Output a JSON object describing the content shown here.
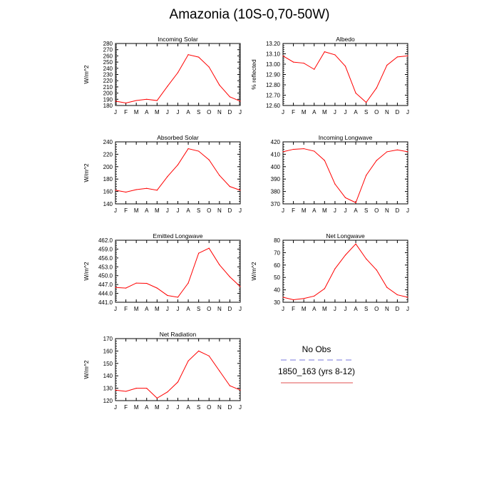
{
  "figure": {
    "title": "Amazonia (10S-0,70-50W)",
    "legend": {
      "entries": [
        {
          "label": "No Obs",
          "style": "dashed",
          "color": "#7777dd"
        },
        {
          "label": "1850_163 (yrs 8-12)",
          "style": "solid",
          "color": "#e05050"
        }
      ]
    },
    "line_color": "#ff0000"
  },
  "chart_data": [
    {
      "type": "line",
      "title": "Incoming Solar",
      "ylabel": "W/m^2",
      "categories": [
        "J",
        "F",
        "M",
        "A",
        "M",
        "J",
        "J",
        "A",
        "S",
        "O",
        "N",
        "D",
        "J"
      ],
      "ylim": [
        180,
        280
      ],
      "yticks": [
        "180",
        "190",
        "200",
        "210",
        "220",
        "230",
        "240",
        "250",
        "260",
        "270",
        "280"
      ],
      "values": [
        187,
        184,
        188,
        190,
        188,
        211,
        233,
        262,
        258,
        242,
        213,
        194,
        187
      ]
    },
    {
      "type": "line",
      "title": "Albedo",
      "ylabel": "% reflected",
      "categories": [
        "J",
        "F",
        "M",
        "A",
        "M",
        "J",
        "J",
        "A",
        "S",
        "O",
        "N",
        "D",
        "J"
      ],
      "ylim": [
        12.6,
        13.2
      ],
      "yticks": [
        "12.60",
        "12.70",
        "12.80",
        "12.90",
        "13.00",
        "13.10",
        "13.20"
      ],
      "values": [
        13.08,
        13.02,
        13.01,
        12.95,
        13.12,
        13.09,
        12.98,
        12.72,
        12.63,
        12.77,
        12.99,
        13.07,
        13.08
      ]
    },
    {
      "type": "line",
      "title": "Absorbed Solar",
      "ylabel": "W/m^2",
      "categories": [
        "J",
        "F",
        "M",
        "A",
        "M",
        "J",
        "J",
        "A",
        "S",
        "O",
        "N",
        "D",
        "J"
      ],
      "ylim": [
        140,
        240
      ],
      "yticks": [
        "140",
        "160",
        "180",
        "200",
        "220",
        "240"
      ],
      "values": [
        162,
        159,
        163,
        165,
        162,
        184,
        203,
        229,
        225,
        211,
        186,
        168,
        162
      ]
    },
    {
      "type": "line",
      "title": "Incoming Longwave",
      "ylabel": "",
      "categories": [
        "J",
        "F",
        "M",
        "A",
        "M",
        "J",
        "J",
        "A",
        "S",
        "O",
        "N",
        "D",
        "J"
      ],
      "ylim": [
        370,
        420
      ],
      "yticks": [
        "370",
        "380",
        "390",
        "400",
        "410",
        "420"
      ],
      "values": [
        412,
        414,
        414.5,
        412.5,
        405,
        386,
        375,
        371,
        393,
        405,
        412,
        413.5,
        412
      ]
    },
    {
      "type": "line",
      "title": "Emitted Longwave",
      "ylabel": "W/m^2",
      "categories": [
        "J",
        "F",
        "M",
        "A",
        "M",
        "J",
        "J",
        "A",
        "S",
        "O",
        "N",
        "D",
        "J"
      ],
      "ylim": [
        441,
        462
      ],
      "yticks": [
        "441.0",
        "444.0",
        "447.0",
        "450.0",
        "453.0",
        "456.0",
        "459.0",
        "462.0"
      ],
      "values": [
        446,
        445.8,
        447.5,
        447.4,
        445.8,
        443.3,
        442.7,
        447.5,
        457.6,
        459.3,
        453.7,
        449.6,
        446.3
      ]
    },
    {
      "type": "line",
      "title": "Net Longwave",
      "ylabel": "W/m^2",
      "categories": [
        "J",
        "F",
        "M",
        "A",
        "M",
        "J",
        "J",
        "A",
        "S",
        "O",
        "N",
        "D",
        "J"
      ],
      "ylim": [
        30,
        80
      ],
      "yticks": [
        "30",
        "40",
        "50",
        "60",
        "70",
        "80"
      ],
      "values": [
        34,
        32,
        33,
        35,
        41,
        57,
        68,
        77,
        65,
        56,
        42,
        36,
        34
      ]
    },
    {
      "type": "line",
      "title": "Net Radiation",
      "ylabel": "W/m^2",
      "categories": [
        "J",
        "F",
        "M",
        "A",
        "M",
        "J",
        "J",
        "A",
        "S",
        "O",
        "N",
        "D",
        "J"
      ],
      "ylim": [
        120,
        170
      ],
      "yticks": [
        "120",
        "130",
        "140",
        "150",
        "160",
        "170"
      ],
      "values": [
        128.5,
        127.5,
        130,
        130,
        122,
        127,
        135,
        152,
        160,
        156,
        144,
        132,
        128.5
      ]
    }
  ]
}
